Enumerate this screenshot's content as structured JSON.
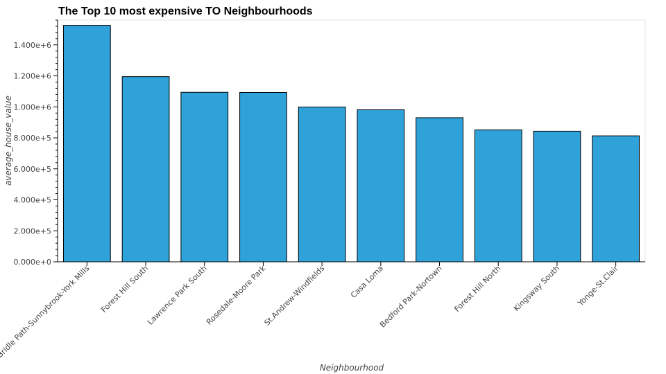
{
  "chart_data": {
    "type": "bar",
    "title": "The Top 10 most expensive TO Neighbourhoods",
    "xlabel": "Neighbourhood",
    "ylabel": "average_house_value",
    "categories": [
      "Bridle Path-Sunnybrook-York Mills",
      "Forest Hill South",
      "Lawrence Park South",
      "Rosedale-Moore Park",
      "St.Andrew-Windfields",
      "Casa Loma",
      "Bedford Park-Nortown",
      "Forest Hill North",
      "Kingsway South",
      "Yonge-St.Clair"
    ],
    "values": [
      1526000,
      1195000,
      1094000,
      1093000,
      999000,
      981000,
      930000,
      851000,
      843000,
      813000
    ],
    "ylim": [
      0,
      1560000
    ],
    "y_ticks": [
      0,
      200000,
      400000,
      600000,
      800000,
      1000000,
      1200000,
      1400000
    ],
    "y_tick_labels": [
      "0.000e+0",
      "2.000e+5",
      "4.000e+5",
      "6.000e+5",
      "8.000e+5",
      "1.000e+6",
      "1.200e+6",
      "1.400e+6"
    ],
    "grid": false,
    "bar_color": "#30a2da"
  }
}
